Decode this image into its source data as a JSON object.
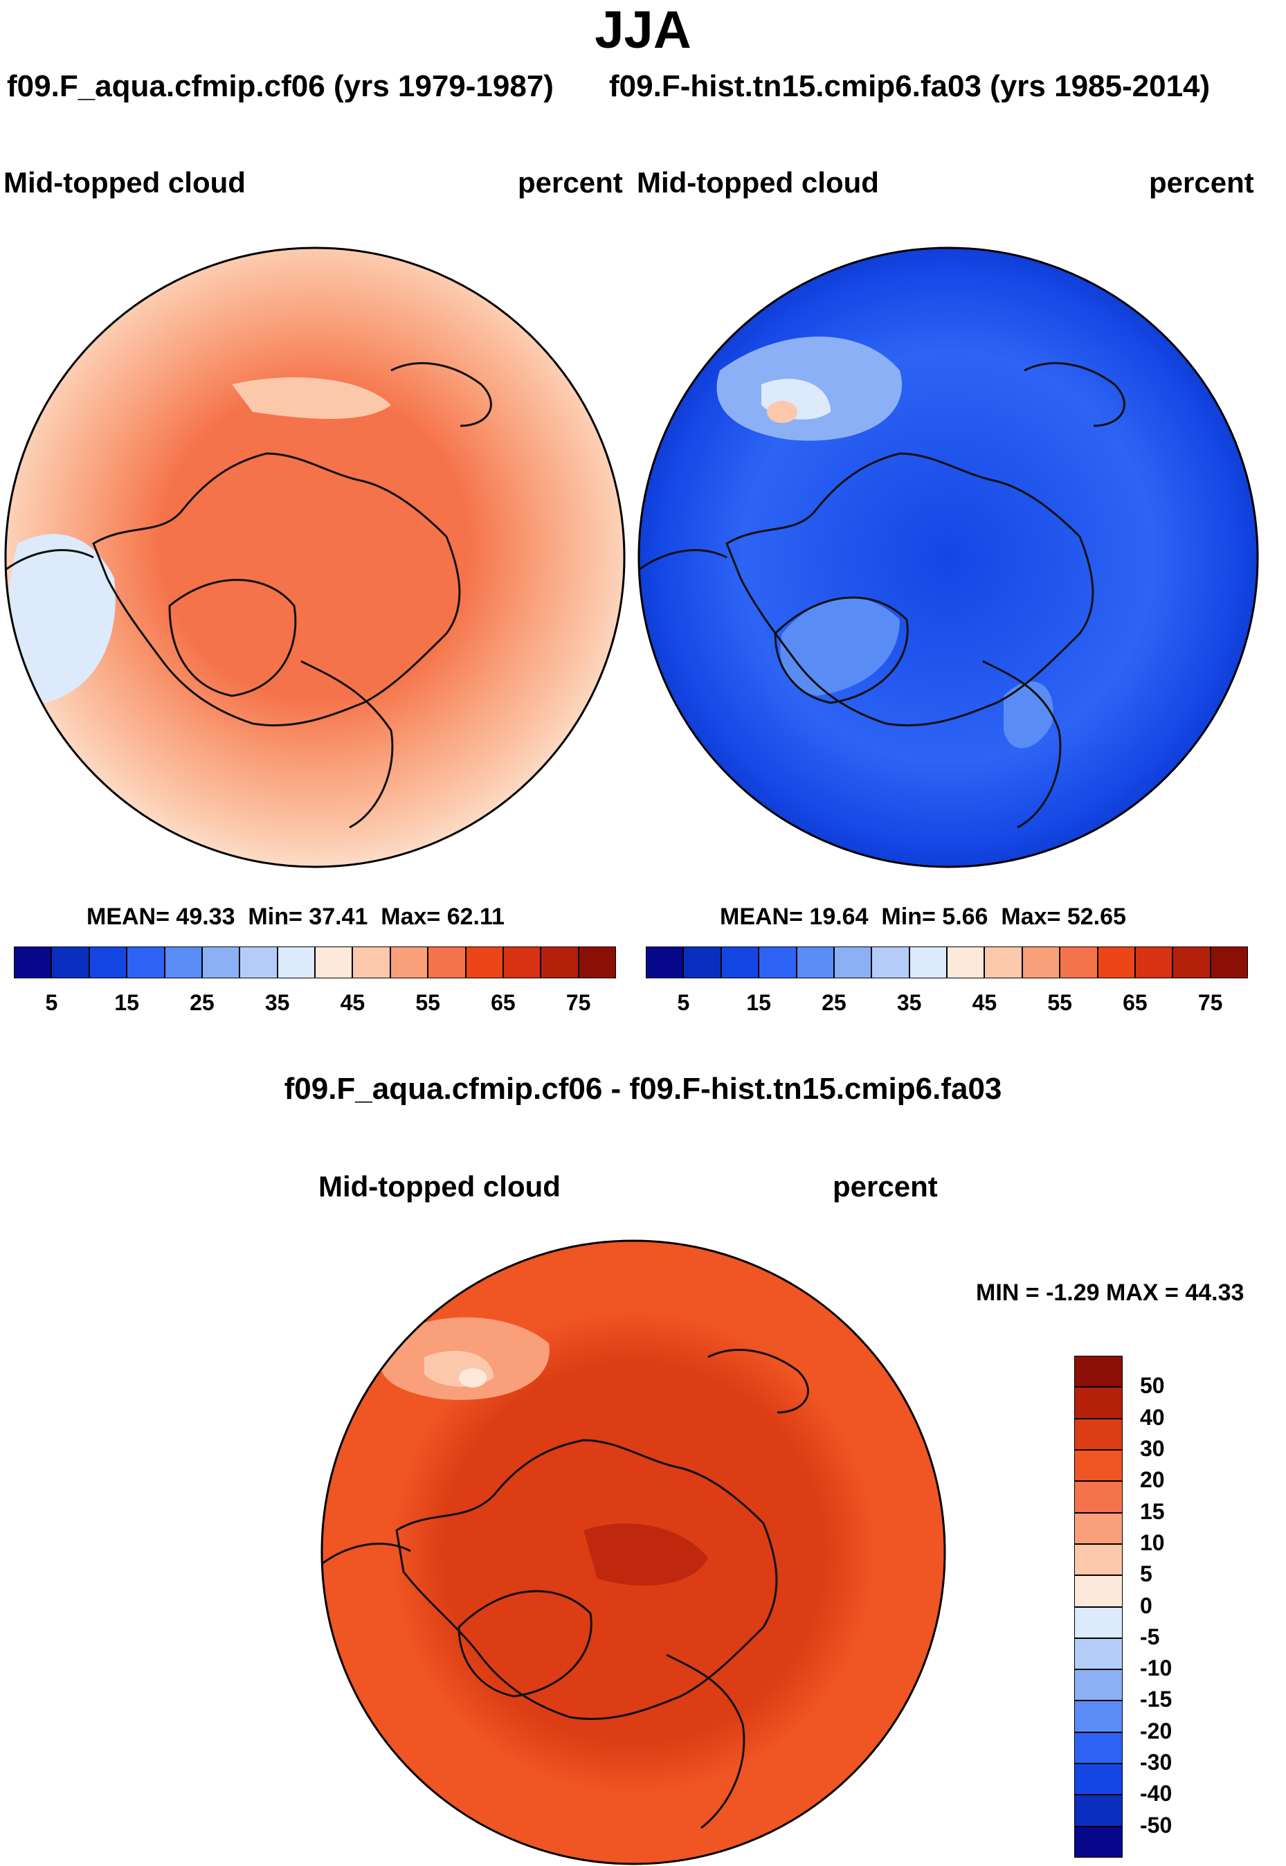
{
  "season": "JJA",
  "panels": {
    "left": {
      "case": "f09.F_aqua.cfmip.cf06 (yrs 1979-1987)",
      "variable": "Mid-topped cloud",
      "units": "percent",
      "stats": {
        "mean_label": "MEAN=",
        "mean": "49.33",
        "min_label": "Min=",
        "min": "37.41",
        "max_label": "Max=",
        "max": "62.11"
      }
    },
    "right": {
      "case": "f09.F-hist.tn15.cmip6.fa03 (yrs 1985-2014)",
      "variable": "Mid-topped cloud",
      "units": "percent",
      "stats": {
        "mean_label": "MEAN=",
        "mean": "19.64",
        "min_label": "Min=",
        "min": "5.66",
        "max_label": "Max=",
        "max": "52.65"
      }
    },
    "diff": {
      "title": "f09.F_aqua.cfmip.cf06 - f09.F-hist.tn15.cmip6.fa03",
      "variable": "Mid-topped cloud",
      "units": "percent",
      "stats": {
        "min_label": "MIN =",
        "min": "-1.29",
        "max_label": "MAX =",
        "max": "44.33"
      }
    }
  },
  "colors": {
    "abs_scale": [
      "#08088c",
      "#0a2fbe",
      "#1446e4",
      "#2d64f5",
      "#5a8cf5",
      "#8cb0f5",
      "#b4cdf8",
      "#dceafc",
      "#fde9da",
      "#fcc8ab",
      "#f9a07a",
      "#f5734a",
      "#ec4618",
      "#d73212",
      "#b4200a",
      "#8c0f05"
    ],
    "diff_scale": [
      "#08088c",
      "#0a2fbe",
      "#1446e4",
      "#2d64f5",
      "#5a8cf5",
      "#8cb0f5",
      "#b4cdf8",
      "#dceafc",
      "#fde9da",
      "#fcc8ab",
      "#f9a07a",
      "#f5734a",
      "#f05524",
      "#dc3d14",
      "#b4200a",
      "#8c0f05"
    ]
  },
  "chart_data": [
    {
      "type": "heatmap",
      "projection": "polar-stereographic-north",
      "title": "Mid-topped cloud",
      "case": "f09.F_aqua.cfmip.cf06 (yrs 1979-1987)",
      "units": "percent",
      "mean": 49.33,
      "min": 37.41,
      "max": 62.11,
      "colorbar_ticks": [
        "5",
        "15",
        "25",
        "35",
        "45",
        "55",
        "65",
        "75"
      ],
      "dominant_range": [
        40,
        60
      ]
    },
    {
      "type": "heatmap",
      "projection": "polar-stereographic-north",
      "title": "Mid-topped cloud",
      "case": "f09.F-hist.tn15.cmip6.fa03 (yrs 1985-2014)",
      "units": "percent",
      "mean": 19.64,
      "min": 5.66,
      "max": 52.65,
      "colorbar_ticks": [
        "5",
        "15",
        "25",
        "35",
        "45",
        "55",
        "65",
        "75"
      ],
      "dominant_range": [
        10,
        25
      ]
    },
    {
      "type": "heatmap",
      "projection": "polar-stereographic-north",
      "title": "f09.F_aqua.cfmip.cf06 - f09.F-hist.tn15.cmip6.fa03",
      "variable": "Mid-topped cloud",
      "units": "percent",
      "min": -1.29,
      "max": 44.33,
      "colorbar_ticks": [
        "50",
        "40",
        "30",
        "20",
        "15",
        "10",
        "5",
        "0",
        "-5",
        "-10",
        "-15",
        "-20",
        "-30",
        "-40",
        "-50"
      ],
      "dominant_range": [
        20,
        40
      ]
    }
  ]
}
